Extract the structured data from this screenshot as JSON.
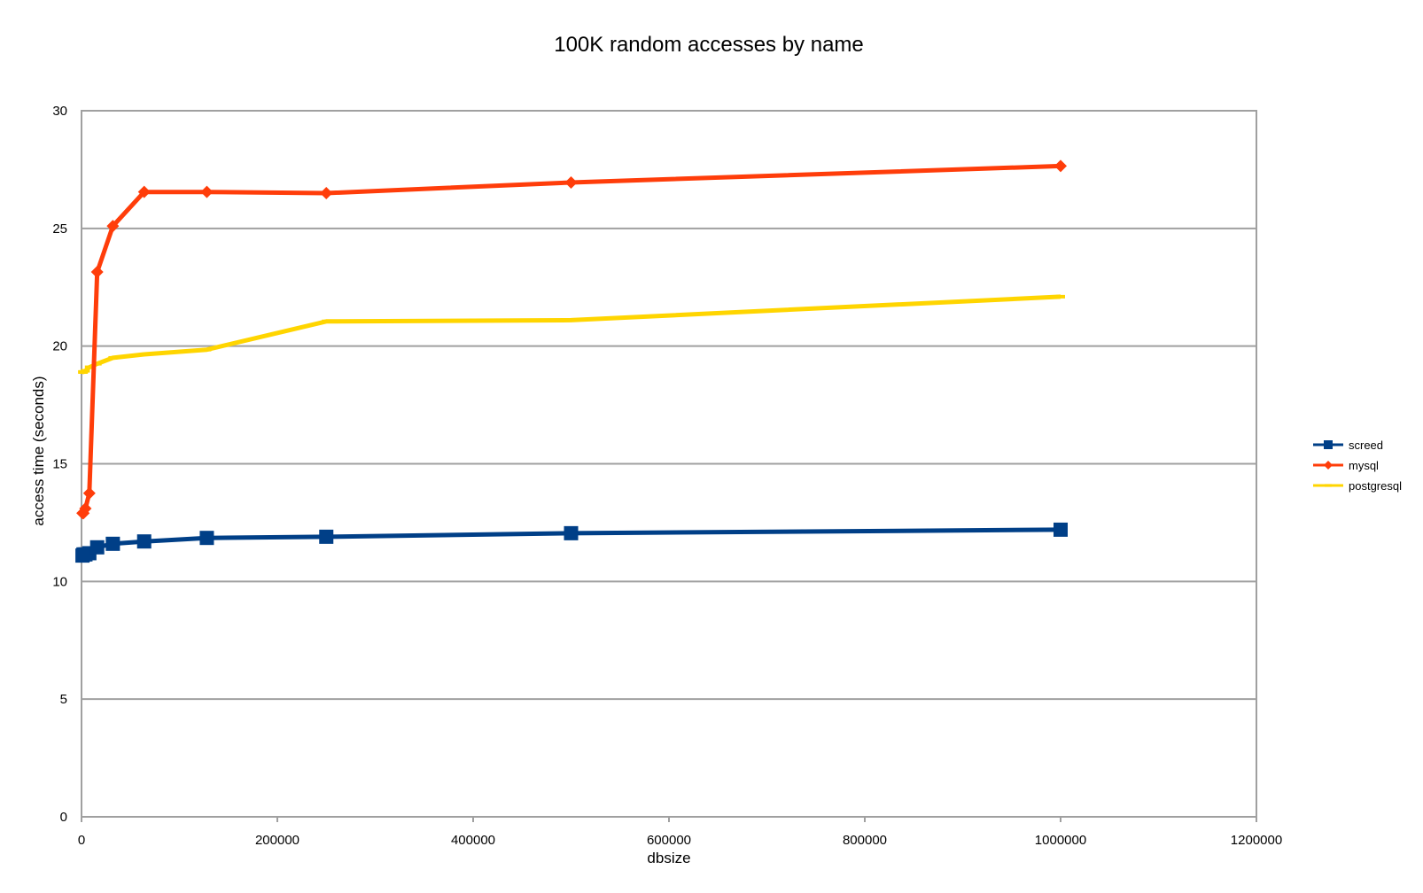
{
  "chart_data": {
    "type": "line",
    "title": "100K random accesses by name",
    "xlabel": "dbsize",
    "ylabel": "access time (seconds)",
    "xlim": [
      0,
      1200000
    ],
    "ylim": [
      0,
      30
    ],
    "x_ticks": [
      "0",
      "200000",
      "400000",
      "600000",
      "800000",
      "1000000",
      "1200000"
    ],
    "y_ticks": [
      "0",
      "5",
      "10",
      "15",
      "20",
      "25",
      "30"
    ],
    "grid": "horizontal",
    "legend_position": "right",
    "series": [
      {
        "name": "screed",
        "color": "#003f87",
        "marker": "square",
        "x": [
          1000,
          2000,
          4000,
          8000,
          16000,
          32000,
          64000,
          128000,
          250000,
          500000,
          1000000
        ],
        "y": [
          11.1,
          11.15,
          11.15,
          11.2,
          11.45,
          11.6,
          11.7,
          11.85,
          11.9,
          12.05,
          12.2
        ]
      },
      {
        "name": "mysql",
        "color": "#ff3d0a",
        "marker": "diamond",
        "x": [
          1000,
          2000,
          4000,
          8000,
          16000,
          32000,
          64000,
          128000,
          250000,
          500000,
          1000000
        ],
        "y": [
          12.9,
          12.9,
          13.1,
          13.75,
          23.15,
          25.1,
          26.55,
          26.55,
          26.5,
          26.95,
          27.65
        ]
      },
      {
        "name": "postgresql",
        "color": "#ffd500",
        "marker": "dash",
        "x": [
          1000,
          2000,
          4000,
          8000,
          16000,
          32000,
          64000,
          128000,
          250000,
          500000,
          1000000
        ],
        "y": [
          18.9,
          18.9,
          18.95,
          19.1,
          19.25,
          19.5,
          19.65,
          19.85,
          21.05,
          21.1,
          22.1
        ]
      }
    ]
  }
}
